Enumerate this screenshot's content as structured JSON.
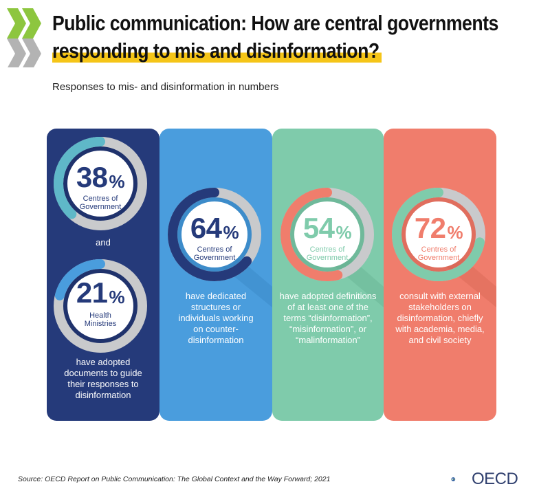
{
  "header": {
    "title_line1": "Public communication: How are central governments",
    "title_line2": "responding to mis and disinformation?",
    "subtitle": "Responses to mis- and disinformation in numbers"
  },
  "chart_data": {
    "type": "donut",
    "title": "Public communication: How are central governments responding to mis and disinformation?",
    "subtitle": "Responses to mis- and disinformation in numbers",
    "unit": "%",
    "panels": [
      {
        "items": [
          {
            "value": 38,
            "label": "Centres of Government"
          },
          {
            "value": 21,
            "label": "Health Ministries"
          }
        ],
        "connector": "and",
        "description": "have adopted documents to guide their responses to disinformation",
        "color": "#253a7a"
      },
      {
        "items": [
          {
            "value": 64,
            "label": "Centres of Government"
          }
        ],
        "description": "have dedicated structures or individuals working on counter-disinformation",
        "color": "#4a9ddd"
      },
      {
        "items": [
          {
            "value": 54,
            "label": "Centres of Government"
          }
        ],
        "description": "have adopted definitions of at least one of the terms “disinformation”, “misinformation”, or “malinformation”",
        "color": "#7fcbab"
      },
      {
        "items": [
          {
            "value": 72,
            "label": "Centres of Government"
          }
        ],
        "description": "consult with external stakeholders on disinformation, chiefly with  academia, media, and civil society",
        "color": "#f07d6c"
      }
    ]
  },
  "cards_text": {
    "c1_desc": [
      "have adopted",
      "documents to guide",
      "their responses to",
      "disinformation"
    ],
    "c2_desc": [
      "have dedicated",
      "structures or",
      "individuals working",
      "on counter-",
      "disinformation"
    ],
    "c3_desc": [
      "have adopted definitions",
      "of at least one of the",
      "terms “disinformation”,",
      "“misinformation”, or",
      "“malinformation”"
    ],
    "c4_desc": [
      "consult with external",
      "stakeholders on",
      "disinformation, chiefly",
      "with  academia, media,",
      "and civil society"
    ],
    "c1_label_a": [
      "Centres of",
      "Government"
    ],
    "c1_label_b": [
      "Health",
      "Ministries"
    ],
    "c2_label": [
      "Centres of",
      "Government"
    ],
    "c3_label": [
      "Centres of",
      "Government"
    ],
    "c4_label": [
      "Centres of",
      "Government"
    ],
    "connector": "and",
    "pct_sign": "%"
  },
  "colors": {
    "navy": "#253a7a",
    "blue": "#4a9ddd",
    "green": "#7fcbab",
    "salmon": "#f07d6c",
    "ring_track": "#c9cacc",
    "arc_card1": "#5fb8c8",
    "arc_card1b": "#4a9ddd",
    "arc_card2": "#253a7a",
    "arc_card3": "#f07d6c",
    "arc_card4": "#7fcbab",
    "chevron_green": "#8dc63f",
    "chevron_grey": "#9a9a9a",
    "title_highlight": "#f5c518"
  },
  "footer": {
    "source": "Source: OECD Report on Public Communication: The Global Context and the Way Forward; 2021",
    "logo_text": "OECD"
  }
}
